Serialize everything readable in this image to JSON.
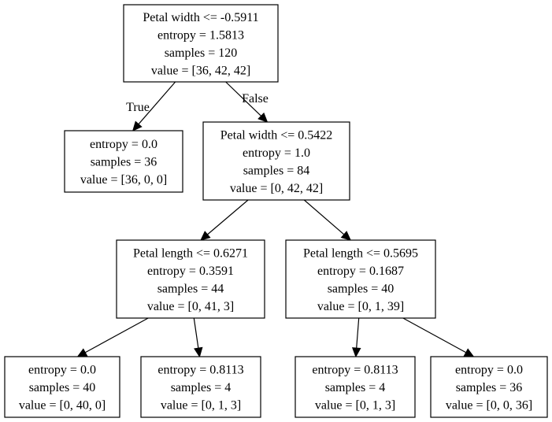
{
  "tree": {
    "nodes": [
      {
        "id": "n0",
        "lines": [
          "Petal width <= -0.5911",
          "entropy = 1.5813",
          "samples = 120",
          "value = [36, 42, 42]"
        ]
      },
      {
        "id": "n1",
        "lines": [
          "entropy = 0.0",
          "samples = 36",
          "value = [36, 0, 0]"
        ]
      },
      {
        "id": "n2",
        "lines": [
          "Petal width <= 0.5422",
          "entropy = 1.0",
          "samples = 84",
          "value = [0, 42, 42]"
        ]
      },
      {
        "id": "n3",
        "lines": [
          "Petal length <= 0.6271",
          "entropy = 0.3591",
          "samples = 44",
          "value = [0, 41, 3]"
        ]
      },
      {
        "id": "n4",
        "lines": [
          "Petal length <= 0.5695",
          "entropy = 0.1687",
          "samples = 40",
          "value = [0, 1, 39]"
        ]
      },
      {
        "id": "n5",
        "lines": [
          "entropy = 0.0",
          "samples = 40",
          "value = [0, 40, 0]"
        ]
      },
      {
        "id": "n6",
        "lines": [
          "entropy = 0.8113",
          "samples = 4",
          "value = [0, 1, 3]"
        ]
      },
      {
        "id": "n7",
        "lines": [
          "entropy = 0.8113",
          "samples = 4",
          "value = [0, 1, 3]"
        ]
      },
      {
        "id": "n8",
        "lines": [
          "entropy = 0.0",
          "samples = 36",
          "value = [0, 0, 36]"
        ]
      }
    ],
    "edges": [
      {
        "from": "n0",
        "to": "n1",
        "label": "True"
      },
      {
        "from": "n0",
        "to": "n2",
        "label": "False"
      },
      {
        "from": "n2",
        "to": "n3",
        "label": ""
      },
      {
        "from": "n2",
        "to": "n4",
        "label": ""
      },
      {
        "from": "n3",
        "to": "n5",
        "label": ""
      },
      {
        "from": "n3",
        "to": "n6",
        "label": ""
      },
      {
        "from": "n4",
        "to": "n7",
        "label": ""
      },
      {
        "from": "n4",
        "to": "n8",
        "label": ""
      }
    ]
  }
}
